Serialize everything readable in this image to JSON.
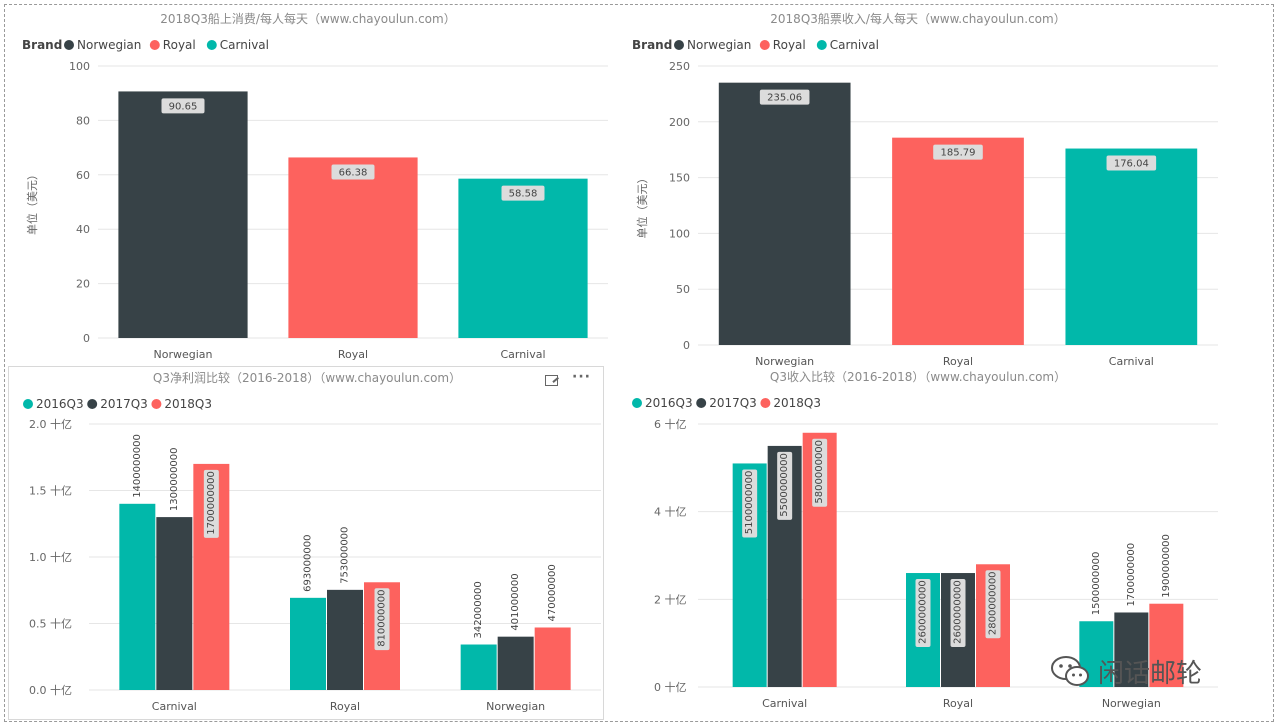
{
  "colors": {
    "Norwegian": "#374247",
    "Royal": "#fd625e",
    "Carnival": "#01b8aa",
    "2016Q3": "#01b8aa",
    "2017Q3": "#374247",
    "2018Q3": "#fd625e"
  },
  "watermark": {
    "text": "闲话邮轮",
    "icon": "wechat-icon"
  },
  "panel_icons": {
    "expand": "expand-icon",
    "more": "···"
  },
  "chart_data": [
    {
      "type": "bar",
      "title": "2018Q3船上消费/每人每天（www.chayoulun.com）",
      "legend_title": "Brand",
      "legend": [
        "Norwegian",
        "Royal",
        "Carnival"
      ],
      "legend_position": "top-left",
      "categories": [
        "Norwegian",
        "Royal",
        "Carnival"
      ],
      "values": [
        90.65,
        66.38,
        58.58
      ],
      "data_labels": [
        "90.65",
        "66.38",
        "58.58"
      ],
      "ylabel": "单位（美元）",
      "xlabel": "",
      "ylim": [
        0,
        100
      ],
      "yticks": [
        0,
        20,
        40,
        60,
        80,
        100
      ],
      "ytick_labels": [
        "0",
        "20",
        "40",
        "60",
        "80",
        "100"
      ],
      "grid": true
    },
    {
      "type": "bar",
      "title": "2018Q3船票收入/每人每天（www.chayoulun.com）",
      "legend_title": "Brand",
      "legend": [
        "Norwegian",
        "Royal",
        "Carnival"
      ],
      "legend_position": "top-left",
      "categories": [
        "Norwegian",
        "Royal",
        "Carnival"
      ],
      "values": [
        235.06,
        185.79,
        176.04
      ],
      "data_labels": [
        "235.06",
        "185.79",
        "176.04"
      ],
      "ylabel": "单位（美元）",
      "xlabel": "",
      "ylim": [
        0,
        250
      ],
      "yticks": [
        0,
        50,
        100,
        150,
        200,
        250
      ],
      "ytick_labels": [
        "0",
        "50",
        "100",
        "150",
        "200",
        "250"
      ],
      "grid": true
    },
    {
      "type": "bar",
      "title": "Q3净利润比较（2016-2018）（www.chayoulun.com）",
      "legend": [
        "2016Q3",
        "2017Q3",
        "2018Q3"
      ],
      "legend_position": "top-left",
      "categories": [
        "Carnival",
        "Royal",
        "Norwegian"
      ],
      "series": [
        {
          "name": "2016Q3",
          "values": [
            1400000000,
            693000000,
            342000000
          ],
          "labels": [
            "1400000000",
            "693000000",
            "342000000"
          ]
        },
        {
          "name": "2017Q3",
          "values": [
            1300000000,
            753000000,
            401000000
          ],
          "labels": [
            "1300000000",
            "753000000",
            "401000000"
          ]
        },
        {
          "name": "2018Q3",
          "values": [
            1700000000,
            810000000,
            470000000
          ],
          "labels": [
            "1700000000",
            "810000000",
            "470000000"
          ]
        }
      ],
      "ylim": [
        0,
        2000000000
      ],
      "yticks": [
        0,
        500000000,
        1000000000,
        1500000000,
        2000000000
      ],
      "ytick_labels": [
        "0.0 十亿",
        "0.5 十亿",
        "1.0 十亿",
        "1.5 十亿",
        "2.0 十亿"
      ],
      "xlabel": "",
      "ylabel": "",
      "grid": true
    },
    {
      "type": "bar",
      "title": "Q3收入比较（2016-2018）（www.chayoulun.com）",
      "legend": [
        "2016Q3",
        "2017Q3",
        "2018Q3"
      ],
      "legend_position": "top-left",
      "categories": [
        "Carnival",
        "Royal",
        "Norwegian"
      ],
      "series": [
        {
          "name": "2016Q3",
          "values": [
            5100000000,
            2600000000,
            1500000000
          ],
          "labels": [
            "5100000000",
            "2600000000",
            "1500000000"
          ]
        },
        {
          "name": "2017Q3",
          "values": [
            5500000000,
            2600000000,
            1700000000
          ],
          "labels": [
            "5500000000",
            "2600000000",
            "1700000000"
          ]
        },
        {
          "name": "2018Q3",
          "values": [
            5800000000,
            2800000000,
            1900000000
          ],
          "labels": [
            "5800000000",
            "2800000000",
            "1900000000"
          ]
        }
      ],
      "ylim": [
        0,
        6000000000
      ],
      "yticks": [
        0,
        2000000000,
        4000000000,
        6000000000
      ],
      "ytick_labels": [
        "0 十亿",
        "2 十亿",
        "4 十亿",
        "6 十亿"
      ],
      "xlabel": "",
      "ylabel": "",
      "grid": true
    }
  ]
}
